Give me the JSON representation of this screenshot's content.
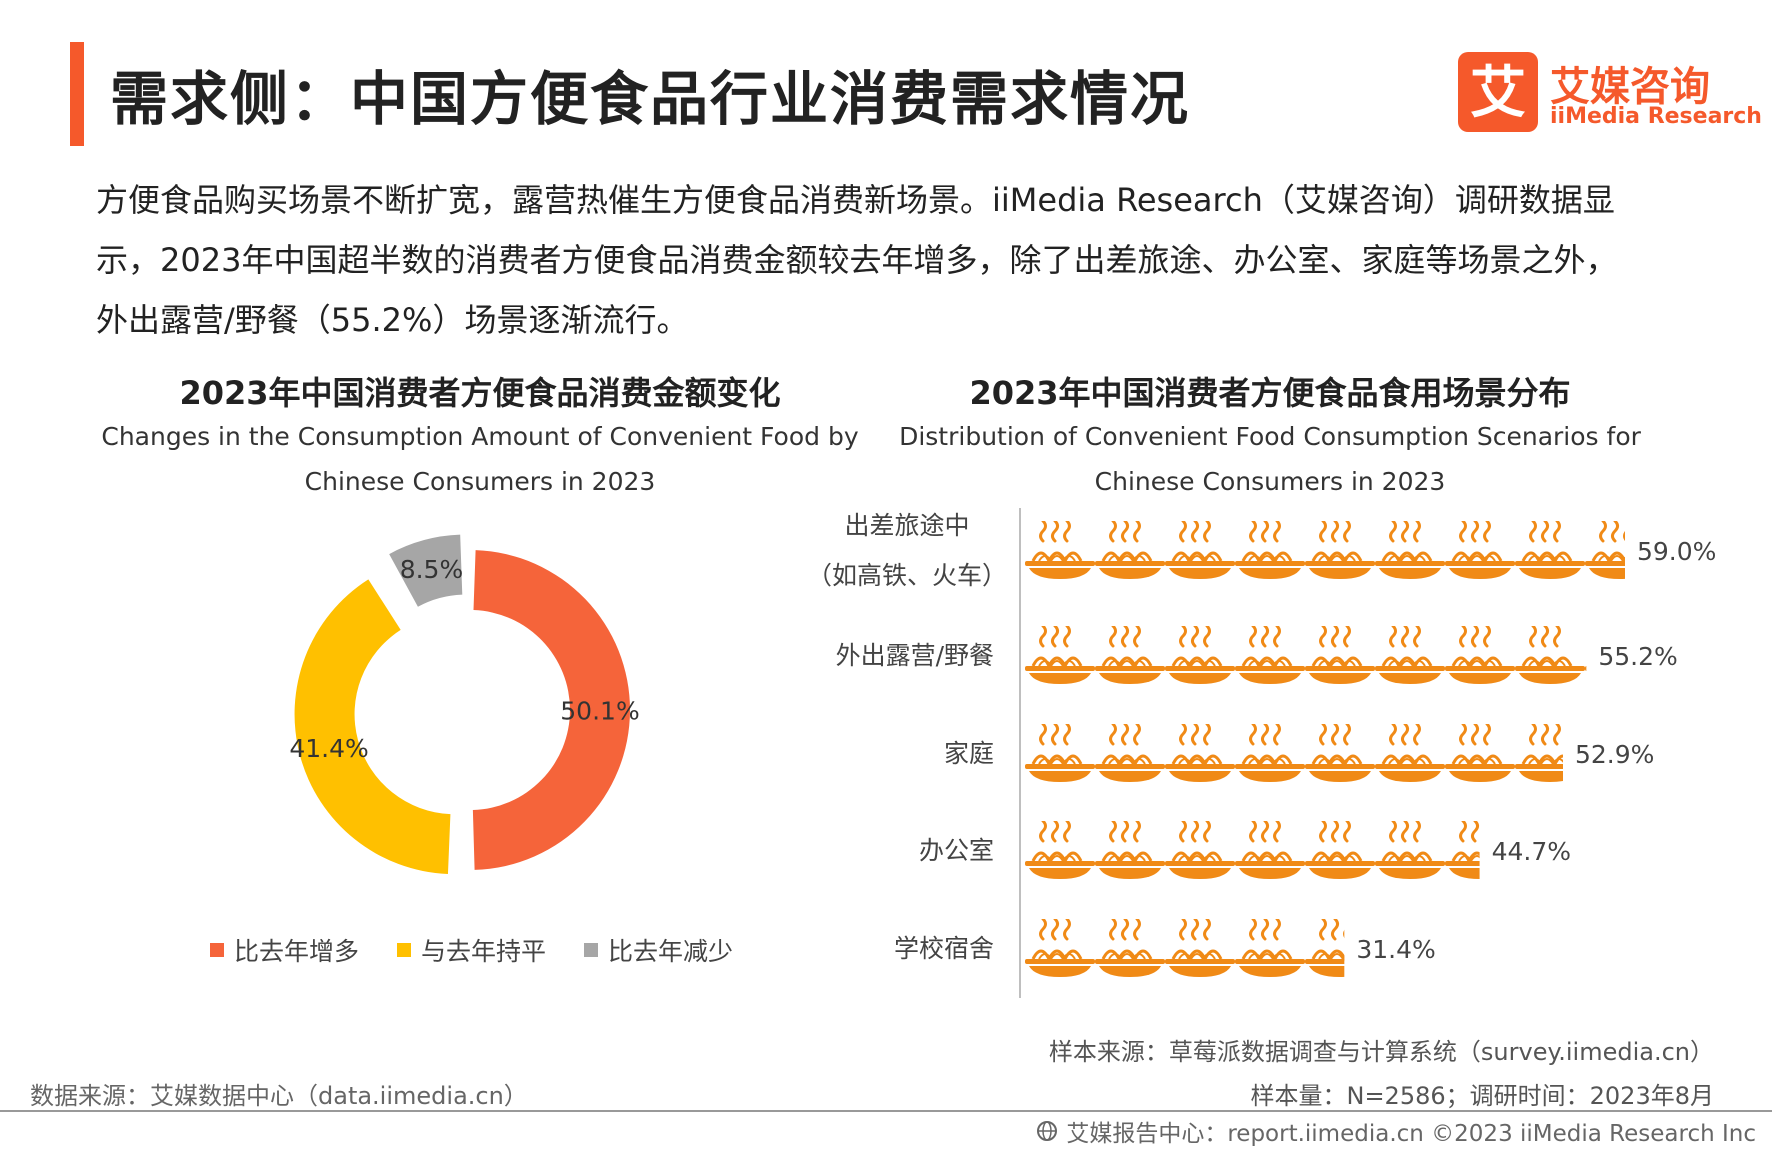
{
  "header": {
    "title": "需求侧：中国方便食品行业消费需求情况",
    "logo_cn": "艾媒咨询",
    "logo_en": "iiMedia Research",
    "logo_glyph": "艾"
  },
  "intro": {
    "line1": "方便食品购买场景不断扩宽，露营热催生方便食品消费新场景。iiMedia Research（艾媒咨询）调研数据显",
    "line2": "示，2023年中国超半数的消费者方便食品消费金额较去年增多，除了出差旅途、办公室、家庭等场景之外，",
    "line3": "外出露营/野餐（55.2%）场景逐渐流行。"
  },
  "chart_data": [
    {
      "type": "pie",
      "title": "2023年中国消费者方便食品消费金额变化",
      "subtitle_line1": "Changes in the Consumption Amount of Convenient Food by",
      "subtitle_line2": "Chinese Consumers in 2023",
      "categories": [
        "比去年增多",
        "与去年持平",
        "比去年减少"
      ],
      "values": [
        50.1,
        41.4,
        8.5
      ],
      "labels": [
        "50.1%",
        "41.4%",
        "8.5%"
      ],
      "colors": [
        "#f5643a",
        "#ffc000",
        "#a6a6a6"
      ],
      "legend": "bottom"
    },
    {
      "type": "bar",
      "title": "2023年中国消费者方便食品食用场景分布",
      "subtitle_line1": "Distribution of Convenient Food Consumption Scenarios for",
      "subtitle_line2": "Chinese Consumers in 2023",
      "categories": [
        {
          "line1": "出差旅途中",
          "line2": "（如高铁、火车）"
        },
        {
          "line1": "外出露营/野餐",
          "line2": ""
        },
        {
          "line1": "家庭",
          "line2": ""
        },
        {
          "line1": "办公室",
          "line2": ""
        },
        {
          "line1": "学校宿舍",
          "line2": ""
        }
      ],
      "values": [
        59.0,
        55.2,
        52.9,
        44.7,
        31.4
      ],
      "labels": [
        "59.0%",
        "55.2%",
        "52.9%",
        "44.7%",
        "31.4%"
      ],
      "orientation": "horizontal",
      "pictogram": "noodle-bowl-icon",
      "color": "#f08a16"
    }
  ],
  "sources": {
    "left": "数据来源：艾媒数据中心（data.iimedia.cn）",
    "sample_source": "样本来源：草莓派数据调查与计算系统（survey.iimedia.cn）",
    "sample_size": "样本量：N=2586；调研时间：2023年8月",
    "footer": "艾媒报告中心：report.iimedia.cn   ©2023  iiMedia Research  Inc"
  }
}
